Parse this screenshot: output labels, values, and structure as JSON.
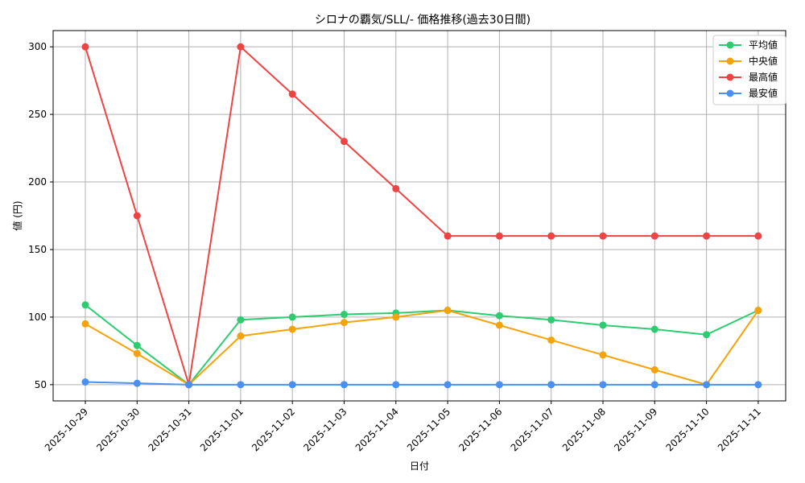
{
  "chart_data": {
    "type": "line",
    "title": "シロナの覇気/SLL/- 価格推移(過去30日間)",
    "xlabel": "日付",
    "ylabel": "値 (円)",
    "ylim": [
      38,
      312
    ],
    "yticks": [
      50,
      100,
      150,
      200,
      250,
      300
    ],
    "grid": true,
    "legend_position": "top-right",
    "categories": [
      "2025-10-29",
      "2025-10-30",
      "2025-10-31",
      "2025-11-01",
      "2025-11-02",
      "2025-11-03",
      "2025-11-04",
      "2025-11-05",
      "2025-11-06",
      "2025-11-07",
      "2025-11-08",
      "2025-11-09",
      "2025-11-10",
      "2025-11-11"
    ],
    "series": [
      {
        "name": "平均値",
        "color": "#2ecc71",
        "values": [
          109,
          79,
          50,
          98,
          100,
          102,
          103,
          105,
          101,
          98,
          94,
          91,
          87,
          105
        ]
      },
      {
        "name": "中央値",
        "color": "#f5a30a",
        "values": [
          95,
          73,
          50,
          86,
          91,
          96,
          100,
          105,
          94,
          83,
          72,
          61,
          50,
          105
        ]
      },
      {
        "name": "最高値",
        "color": "#ef4444",
        "values": [
          300,
          175,
          50,
          300,
          265,
          230,
          195,
          160,
          160,
          160,
          160,
          160,
          160,
          160
        ]
      },
      {
        "name": "最安値",
        "color": "#4a90f0",
        "values": [
          52,
          51,
          50,
          50,
          50,
          50,
          50,
          50,
          50,
          50,
          50,
          50,
          50,
          50
        ]
      }
    ]
  }
}
